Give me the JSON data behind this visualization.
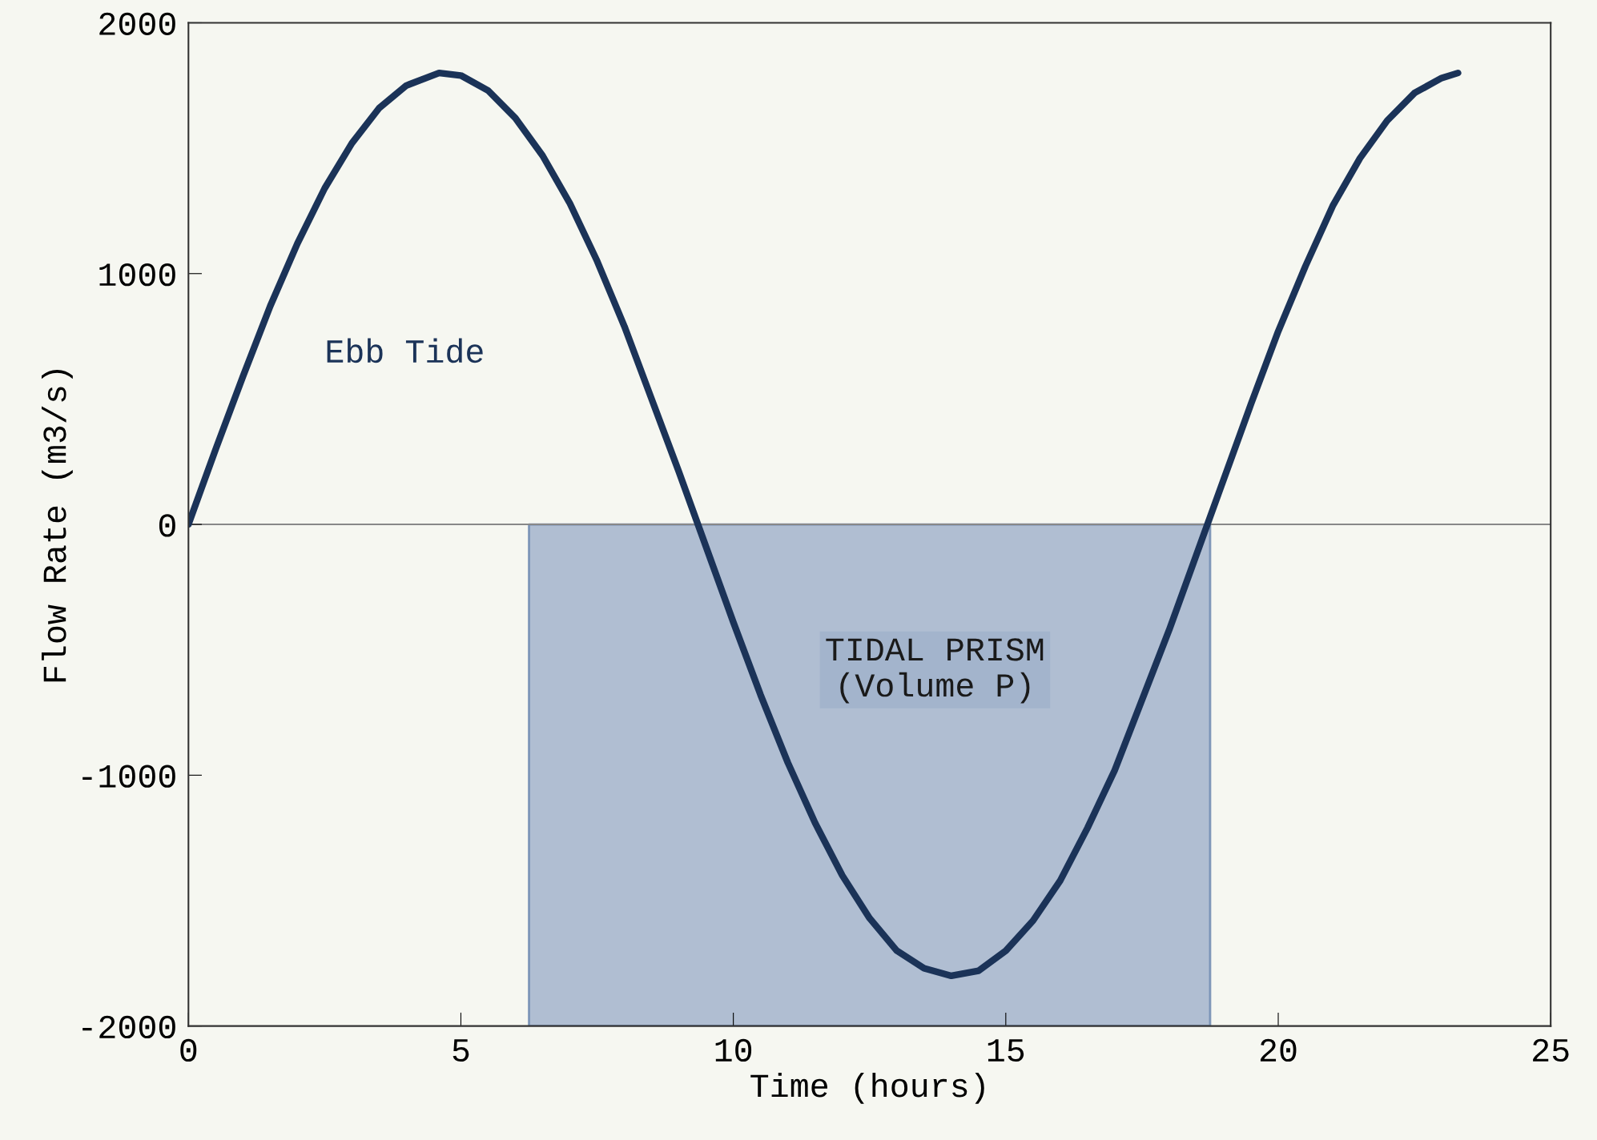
{
  "chart_data": {
    "type": "line",
    "xlabel": "Time (hours)",
    "ylabel": "Flow Rate (m3/s)",
    "series": [
      {
        "color": "#1b3358",
        "x": [
          0,
          0.5,
          1,
          1.5,
          2,
          2.5,
          3,
          3.5,
          4,
          4.6,
          5,
          5.5,
          6,
          6.5,
          7,
          7.5,
          8,
          8.5,
          9,
          9.5,
          10,
          10.5,
          11,
          11.5,
          12,
          12.5,
          13,
          13.5,
          14,
          14.5,
          15,
          15.5,
          16,
          16.5,
          17,
          17.5,
          18,
          18.5,
          19,
          19.5,
          20,
          20.5,
          21,
          21.5,
          22,
          22.5,
          23,
          23.3
        ],
        "values": [
          0,
          300,
          590,
          870,
          1120,
          1340,
          1520,
          1660,
          1750,
          1800,
          1790,
          1730,
          1620,
          1470,
          1280,
          1050,
          790,
          500,
          210,
          -90,
          -390,
          -680,
          -950,
          -1190,
          -1400,
          -1570,
          -1700,
          -1770,
          -1800,
          -1780,
          -1700,
          -1580,
          -1420,
          -1210,
          -980,
          -700,
          -420,
          -120,
          180,
          480,
          770,
          1030,
          1270,
          1460,
          1610,
          1720,
          1780,
          1800
        ]
      }
    ],
    "xlim": [
      0,
      25
    ],
    "xticks": [
      0,
      5,
      10,
      15,
      20,
      25
    ],
    "ylim": [
      -2000,
      2000
    ],
    "yticks": [
      -2000,
      -1000,
      0,
      1000,
      2000
    ],
    "ref_lines": [
      {
        "axis": "y",
        "value": 0,
        "color": "#888888"
      }
    ],
    "bands": [
      {
        "axis": "x",
        "from": 6.25,
        "to": 18.75,
        "label": "TIDAL PRISM\n(Volume P)",
        "color": "#a3b4cc"
      }
    ],
    "annotations": [
      "Ebb Tide"
    ],
    "grid": false,
    "marker": "none",
    "line_style": "solid"
  }
}
